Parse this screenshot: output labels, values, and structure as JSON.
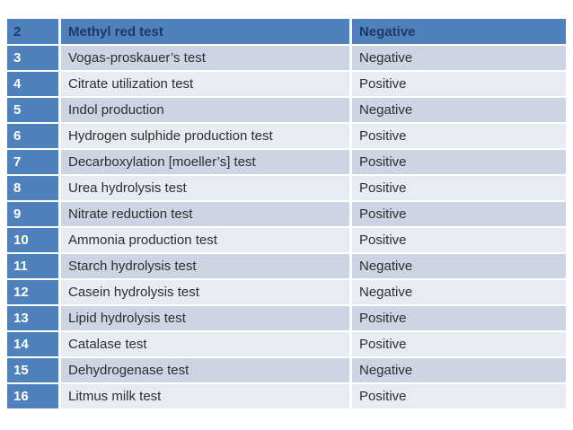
{
  "table": {
    "description": "Biochemical test results table",
    "columns": [
      "number",
      "test",
      "result"
    ],
    "header": {
      "number": "2",
      "test": "Methyl red test",
      "result": "Negative"
    },
    "rows": [
      {
        "number": "3",
        "test": "Vogas-proskauer’s test",
        "result": "Negative"
      },
      {
        "number": "4",
        "test": "Citrate utilization test",
        "result": "Positive"
      },
      {
        "number": "5",
        "test": "Indol production",
        "result": "Negative"
      },
      {
        "number": "6",
        "test": "Hydrogen sulphide production test",
        "result": "Positive"
      },
      {
        "number": "7",
        "test": "Decarboxylation [moeller’s] test",
        "result": "Positive"
      },
      {
        "number": "8",
        "test": "Urea hydrolysis test",
        "result": "Positive"
      },
      {
        "number": "9",
        "test": "Nitrate reduction test",
        "result": "Positive"
      },
      {
        "number": "10",
        "test": "Ammonia production test",
        "result": "Positive"
      },
      {
        "number": "11",
        "test": "Starch hydrolysis test",
        "result": "Negative"
      },
      {
        "number": "12",
        "test": "Casein hydrolysis test",
        "result": "Negative"
      },
      {
        "number": "13",
        "test": "Lipid hydrolysis test",
        "result": "Positive"
      },
      {
        "number": "14",
        "test": "Catalase test",
        "result": "Positive"
      },
      {
        "number": "15",
        "test": "Dehydrogenase test",
        "result": "Negative"
      },
      {
        "number": "16",
        "test": "Litmus milk test",
        "result": "Positive"
      }
    ],
    "colors": {
      "header_bg": "#4f81bd",
      "header_text": "#1f3864",
      "band_dark": "#cdd4e4",
      "band_light": "#e9ebf3",
      "number_text": "#ffffff",
      "body_text": "#2e2e2e"
    }
  }
}
